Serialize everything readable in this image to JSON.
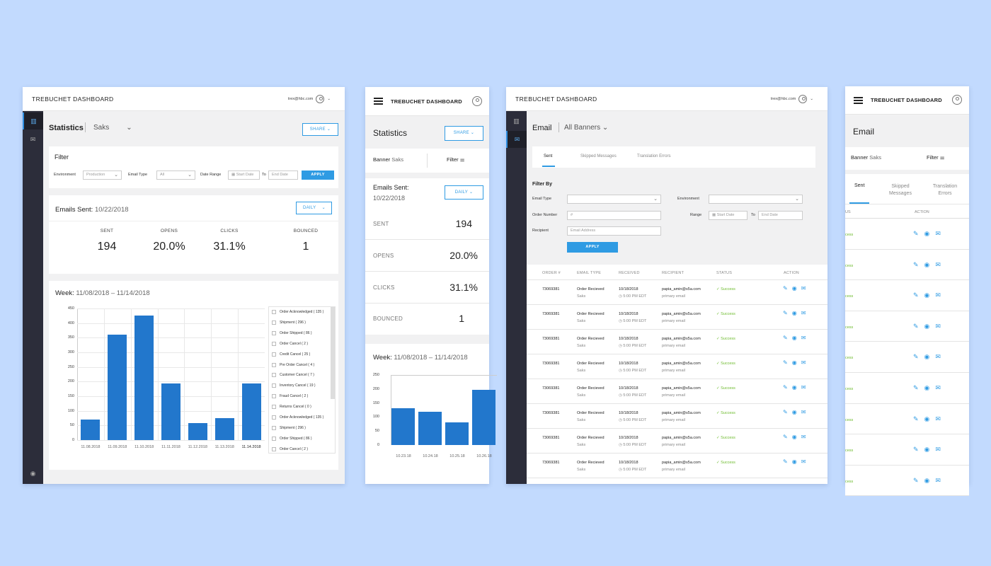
{
  "app": {
    "title": "TREBUCHET DASHBOARD",
    "user_email": "trex@hbc.com"
  },
  "colors": {
    "accent": "#2f9be3",
    "bar": "#2277cc",
    "sidebar": "#2c2d3a",
    "success": "#6dbb2d",
    "background": "#c2dafe"
  },
  "stats_desktop": {
    "title": "Statistics",
    "banner": "Saks",
    "share": "SHARE",
    "filter": {
      "title": "Filter",
      "environment_label": "Environment",
      "environment_value": "Production",
      "email_type_label": "Email Type",
      "email_type_value": "All",
      "date_range_label": "Date Range",
      "start_placeholder": "Start Date",
      "to": "To",
      "end_placeholder": "End Date",
      "apply": "APPLY"
    },
    "emails_sent_label": "Emails Sent:",
    "emails_sent_date": "10/22/2018",
    "period": "DAILY",
    "metrics": [
      {
        "label": "SENT",
        "value": "194"
      },
      {
        "label": "OPENS",
        "value": "20.0%"
      },
      {
        "label": "CLICKS",
        "value": "31.1%"
      },
      {
        "label": "BOUNCED",
        "value": "1"
      }
    ],
    "week_label": "Week:",
    "week_range": "11/08/2018 – 11/14/2018",
    "legend": [
      "Order Acknowledged ( 135 )",
      "Shipment ( 296 )",
      "Order Shipped ( 86 )",
      "Order Cancel ( 2 )",
      "Credit Cancel ( 25 )",
      "Pre Order Cancel ( 4 )",
      "Customer Cancel ( 7 )",
      "Inventory Cancel ( 19 )",
      "Fraud Cancel ( 2 )",
      "Returns Cancel ( 0 )",
      "Order Acknowledged ( 135 )",
      "Shipment ( 296 )",
      "Order Shipped ( 86 )",
      "Order Cancel ( 2 )"
    ]
  },
  "stats_mobile": {
    "title": "Statistics",
    "share": "SHARE",
    "banner_label": "Banner",
    "banner_value": "Saks",
    "filter_label": "Filter",
    "emails_sent_label": "Emails Sent:",
    "emails_sent_date": "10/22/2018",
    "period": "DAILY",
    "metrics": [
      {
        "label": "SENT",
        "value": "194"
      },
      {
        "label": "OPENS",
        "value": "20.0%"
      },
      {
        "label": "CLICKS",
        "value": "31.1%"
      },
      {
        "label": "BOUNCED",
        "value": "1"
      }
    ],
    "week_label": "Week:",
    "week_range": "11/08/2018 – 11/14/2018"
  },
  "chart_data": [
    {
      "type": "bar",
      "categories": [
        "11.08.2018",
        "11.09.2018",
        "11.10.2018",
        "11.11.2018",
        "11.12.2018",
        "11.13.2018",
        "11.14.2018"
      ],
      "values": [
        70,
        360,
        425,
        193,
        57,
        75,
        194
      ],
      "ylim": [
        0,
        450
      ],
      "yticks": [
        "450",
        "400",
        "350",
        "300",
        "250",
        "200",
        "150",
        "100",
        "50",
        "0"
      ],
      "grid": true
    },
    {
      "type": "bar",
      "categories": [
        "10.23.18",
        "10.24.18",
        "10.25.18",
        "10.26.18"
      ],
      "values": [
        132,
        118,
        80,
        197
      ],
      "ylim": [
        0,
        250
      ],
      "yticks": [
        "250",
        "200",
        "150",
        "100",
        "50",
        "0"
      ]
    }
  ],
  "email_desktop": {
    "title": "Email",
    "banner": "All Banners",
    "tabs": [
      "Sent",
      "Skipped Messages",
      "Translation Errors"
    ],
    "filter_title": "Filter By",
    "email_type_label": "Email Type",
    "environment_label": "Environment",
    "order_number_label": "Order Number",
    "order_placeholder": "#",
    "range_label": "Range",
    "start_placeholder": "Start Date",
    "to": "To",
    "end_placeholder": "End Date",
    "recipient_label": "Recipient",
    "recipient_placeholder": "Email Address",
    "apply": "APPLY",
    "columns": [
      "ORDER #",
      "EMAIL TYPE",
      "RECEIVED",
      "RECIPIENT",
      "STATUS",
      "ACTION"
    ],
    "row": {
      "order": "73069381",
      "type": "Order Recieved",
      "type_sub": "Saks",
      "date": "10/18/2018",
      "time": "5:00 PM EDT",
      "email": "papia_amin@s5a.com",
      "email_sub": "primary email",
      "status": "Success"
    }
  },
  "email_mobile": {
    "title": "Email",
    "banner_label": "Banner",
    "banner_value": "Saks",
    "filter_label": "Filter",
    "tabs": [
      "Sent",
      "Skipped Messages",
      "Translation Errors"
    ],
    "col_status": "US",
    "col_action": "ACTION",
    "row_status": "cess"
  }
}
